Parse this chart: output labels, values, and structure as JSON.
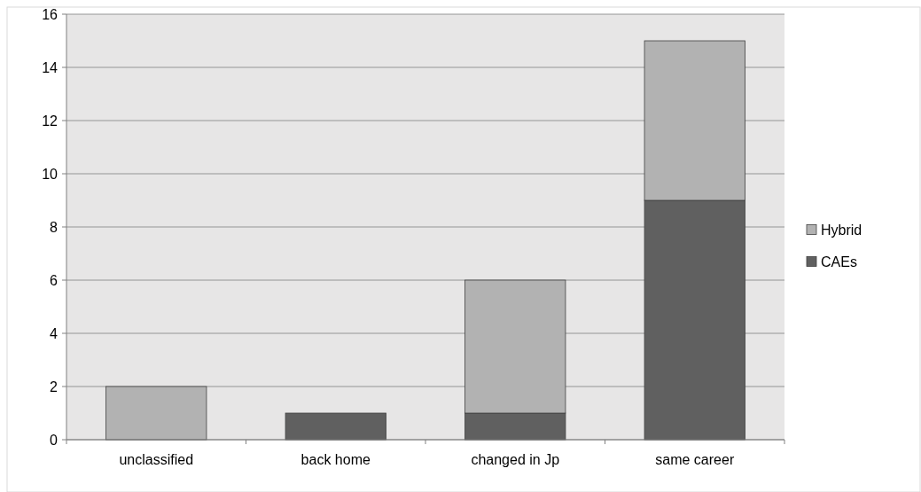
{
  "chart_data": {
    "type": "bar",
    "stacked": true,
    "categories": [
      "unclassified",
      "back home",
      "changed in Jp",
      "same career"
    ],
    "series": [
      {
        "name": "CAEs",
        "color": "#606060",
        "values": [
          0,
          1,
          1,
          9
        ]
      },
      {
        "name": "Hybrid",
        "color": "#b2b2b2",
        "values": [
          2,
          0,
          5,
          6
        ]
      }
    ],
    "ylim": [
      0,
      16
    ],
    "yticks": [
      0,
      2,
      4,
      6,
      8,
      10,
      12,
      14,
      16
    ],
    "grid": "y",
    "legend": "right"
  }
}
